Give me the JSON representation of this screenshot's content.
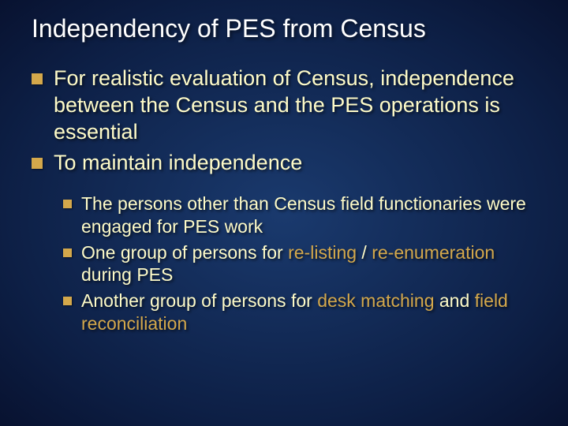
{
  "colors": {
    "background_center": "#1a3a6e",
    "background_edge": "#081230",
    "title_color": "#ffffff",
    "body_text_color": "#fefbc8",
    "bullet_marker_color": "#d4a84b",
    "highlight_color": "#d4a84b"
  },
  "typography": {
    "title_fontsize": 32,
    "l1_fontsize": 27,
    "l2_fontsize": 23,
    "font_family": "Arial"
  },
  "title": "Independency of PES from Census",
  "bullets_l1": [
    "For realistic evaluation of Census, independence between the Census and the PES operations is essential",
    "To maintain independence"
  ],
  "bullets_l2": [
    {
      "pre": "The persons other than Census field functionaries were engaged for PES work",
      "hl1": "",
      "mid": "",
      "hl2": "",
      "post": ""
    },
    {
      "pre": "One group of persons for ",
      "hl1": "re-listing",
      "mid": " / ",
      "hl2": "re-enumeration",
      "post": " during PES"
    },
    {
      "pre": "Another group of persons for ",
      "hl1": "desk matching",
      "mid": " and ",
      "hl2": "field reconciliation",
      "post": ""
    }
  ]
}
